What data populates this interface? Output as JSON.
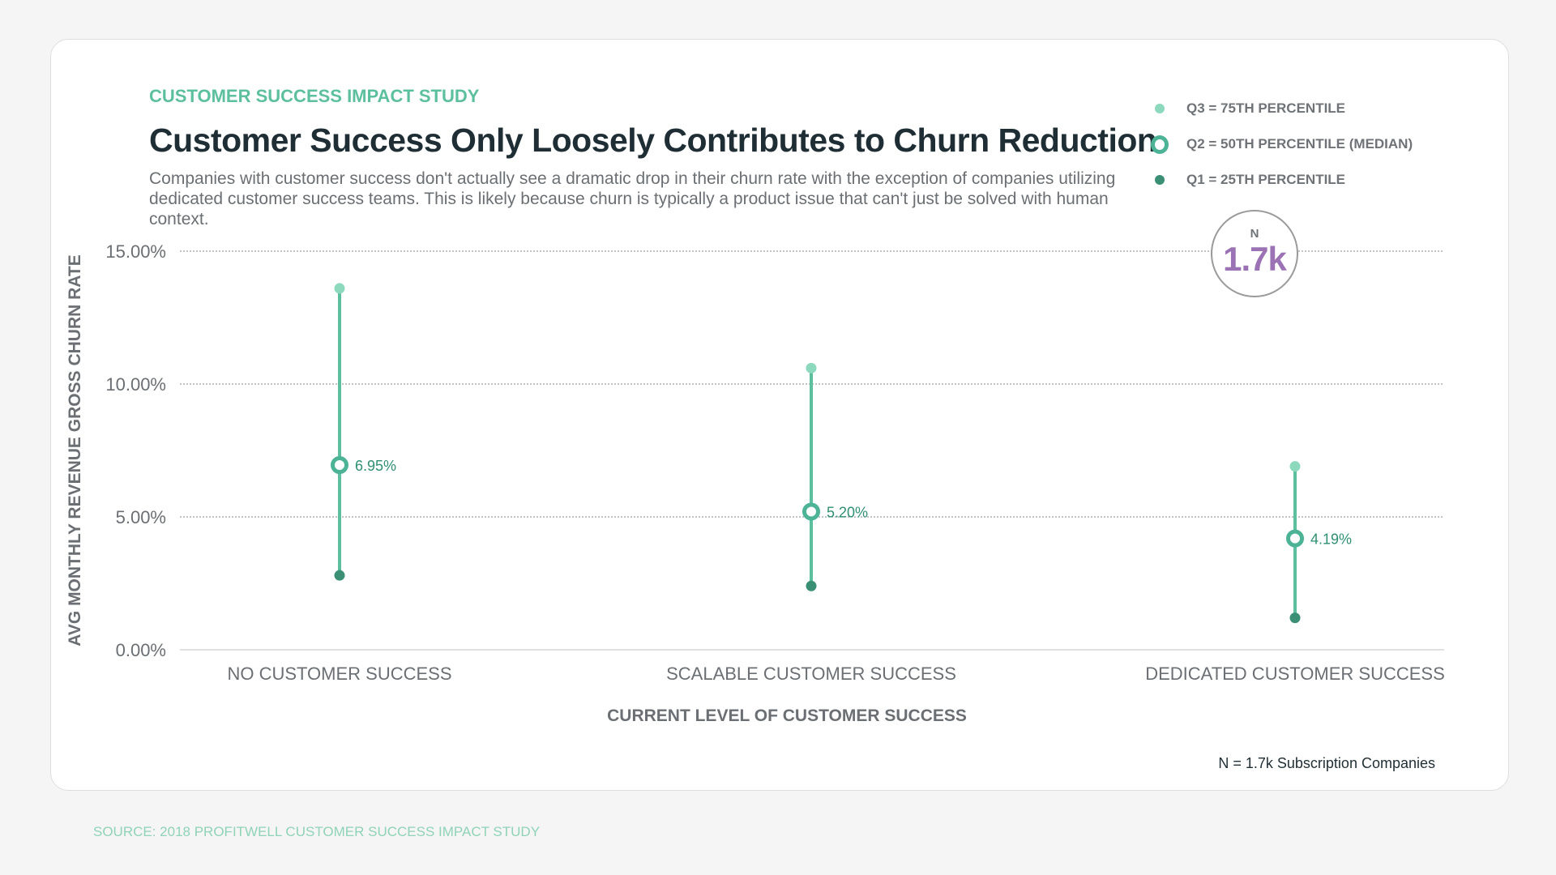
{
  "header": {
    "eyebrow": "CUSTOMER SUCCESS IMPACT STUDY",
    "title": "Customer Success Only Loosely Contributes to Churn Reduction",
    "subtitle": "Companies with customer success don't actually see a dramatic drop in their churn rate with the exception of companies utilizing dedicated customer success teams. This is likely because churn is typically a product issue that can't just be solved with human context."
  },
  "legend": {
    "items": [
      {
        "label": "Q3 = 75TH PERCENTILE",
        "icon": "light-dot-icon",
        "color": "#8dd9bd"
      },
      {
        "label": "Q2 = 50TH PERCENTILE (MEDIAN)",
        "icon": "ring-dot-icon",
        "color": "#4cb396"
      },
      {
        "label": "Q1 = 25TH PERCENTILE",
        "icon": "dark-dot-icon",
        "color": "#3a8f74"
      }
    ]
  },
  "badge": {
    "label": "N",
    "value": "1.7k"
  },
  "footnote": "N = 1.7k Subscription Companies",
  "source": "SOURCE: 2018 PROFITWELL CUSTOMER SUCCESS IMPACT STUDY",
  "colors": {
    "q3": "#8dd9bd",
    "q2": "#4cb396",
    "q1": "#3a8f74",
    "whisker": "#5cbf9d",
    "median_label": "#2f8f72",
    "grid": "#9aa0a4",
    "axis_text": "#6b6f73"
  },
  "chart_data": {
    "type": "scatter",
    "title": "Customer Success Only Loosely Contributes to Churn Reduction",
    "xlabel": "CURRENT LEVEL OF CUSTOMER SUCCESS",
    "ylabel": "AVG MONTHLY REVENUE GROSS CHURN RATE",
    "ylim": [
      0,
      15
    ],
    "yticks": [
      0,
      5,
      10,
      15
    ],
    "ytick_labels": [
      "0.00%",
      "5.00%",
      "10.00%",
      "15.00%"
    ],
    "grid": true,
    "legend_position": "top-right",
    "categories": [
      "NO CUSTOMER SUCCESS",
      "SCALABLE CUSTOMER SUCCESS",
      "DEDICATED CUSTOMER SUCCESS"
    ],
    "series": [
      {
        "name": "Q3 = 75TH PERCENTILE",
        "values": [
          13.6,
          10.6,
          6.9
        ]
      },
      {
        "name": "Q2 = 50TH PERCENTILE (MEDIAN)",
        "values": [
          6.95,
          5.2,
          4.19
        ]
      },
      {
        "name": "Q1 = 25TH PERCENTILE",
        "values": [
          2.8,
          2.4,
          1.2
        ]
      }
    ],
    "median_labels": [
      "6.95%",
      "5.20%",
      "4.19%"
    ]
  }
}
